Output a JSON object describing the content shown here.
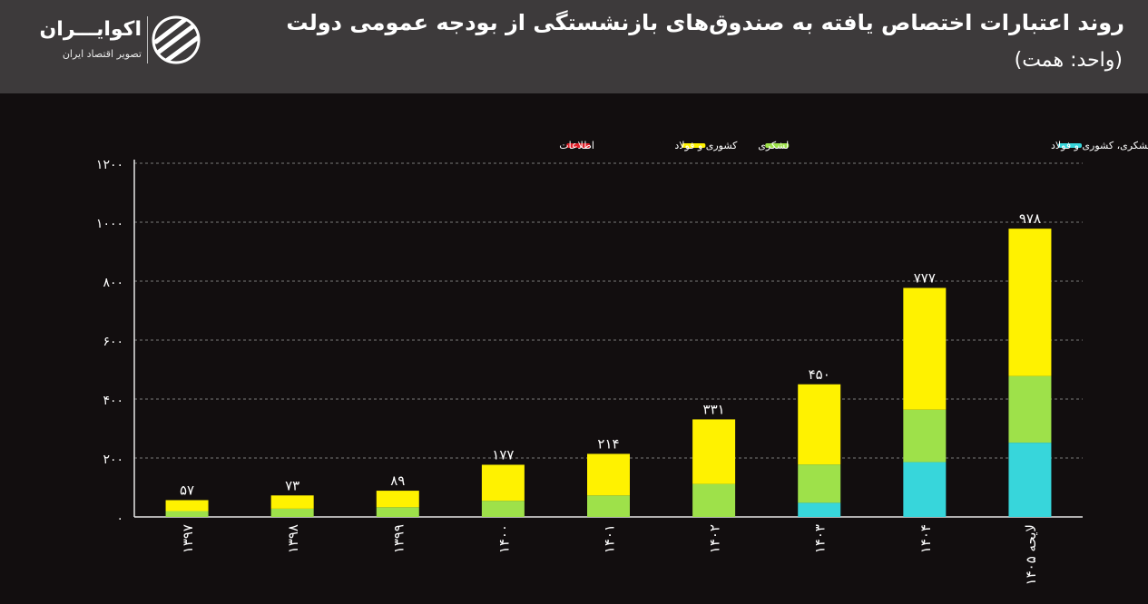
{
  "header": {
    "title": "روند اعتبارات اختصاص یافته به صندوق‌های بازنشستگی از بودجه عمومی دولت",
    "subtitle": "(واحد: همت)"
  },
  "brand": {
    "name": "اکوایـــران",
    "tagline": "تصویر اقتصاد ایران",
    "icon": "ecoiran-logo-icon"
  },
  "colors": {
    "background": "#120e0f",
    "header_bg": "#3d3a3b",
    "cyan": "#37d6db",
    "green": "#9ee14a",
    "yellow": "#fff200",
    "red": "#e0202a",
    "grid": "#7a7a7a"
  },
  "chart_data": {
    "type": "bar",
    "stacked": true,
    "categories": [
      "۱۳۹۷",
      "۱۳۹۸",
      "۱۳۹۹",
      "۱۴۰۰",
      "۱۴۰۱",
      "۱۴۰۲",
      "۱۴۰۳",
      "۱۴۰۴",
      "لایحه ۱۴۰۵"
    ],
    "series": [
      {
        "name": "متناسب‌سازی حقوق بازنشستگان لشکری، کشوری و فولاد",
        "color": "#37d6db",
        "values": [
          0,
          0,
          0,
          0,
          0,
          0,
          48,
          186,
          252
        ]
      },
      {
        "name": "لشکری",
        "color": "#9ee14a",
        "values": [
          20,
          28,
          33,
          55,
          73,
          112,
          130,
          178,
          226
        ]
      },
      {
        "name": "کشوری و فولاد",
        "color": "#fff200",
        "values": [
          37,
          45,
          56,
          122,
          141,
          219,
          272,
          413,
          500
        ]
      },
      {
        "name": "اطلاعات",
        "color": "#e0202a",
        "values": [
          0,
          0,
          0,
          0,
          0,
          0,
          0,
          0,
          0
        ]
      }
    ],
    "totals": [
      "۵۷",
      "۷۳",
      "۸۹",
      "۱۷۷",
      "۲۱۴",
      "۳۳۱",
      "۴۵۰",
      "۷۷۷",
      "۹۷۸"
    ],
    "total_values": [
      57,
      73,
      89,
      177,
      214,
      331,
      450,
      777,
      978
    ],
    "yticks": [
      0,
      200,
      400,
      600,
      800,
      1000,
      1200
    ],
    "ytick_labels": [
      "۰",
      "۲۰۰",
      "۴۰۰",
      "۶۰۰",
      "۸۰۰",
      "۱۰۰۰",
      "۱۲۰۰"
    ],
    "ylim": [
      0,
      1200
    ],
    "grid": true,
    "legend_position": "top-right",
    "xlabel": "",
    "ylabel": ""
  }
}
